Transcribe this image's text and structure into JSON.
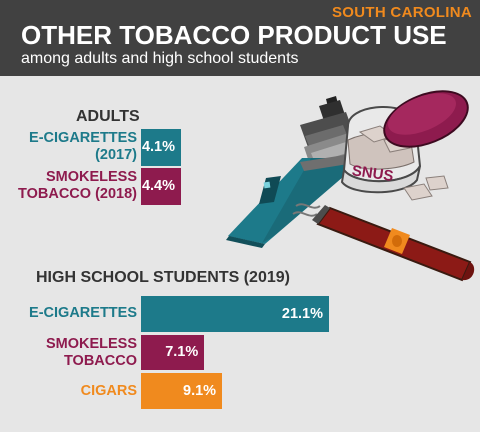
{
  "header": {
    "state": "SOUTH CAROLINA",
    "title": "OTHER TOBACCO PRODUCT USE",
    "subtitle": "among adults and high school students"
  },
  "colors": {
    "teal": "#1d7a8a",
    "maroon": "#8e1b4e",
    "orange": "#f08a1e",
    "header_bg": "#414141",
    "background": "#e6e6e6"
  },
  "illustration": {
    "snus_label": "SNUS",
    "items": [
      "e-cigarette-icon",
      "snus-tin-icon",
      "cigar-icon"
    ]
  },
  "chart_data": [
    {
      "type": "bar",
      "orientation": "horizontal",
      "title": "ADULTS",
      "unit": "%",
      "categories": [
        "E-CIGARETTES\n(2017)",
        "SMOKELESS\nTOBACCO (2018)"
      ],
      "values": [
        4.1,
        4.4
      ],
      "labels": [
        "4.1%",
        "4.4%"
      ],
      "colors": [
        "#1d7a8a",
        "#8e1b4e"
      ]
    },
    {
      "type": "bar",
      "orientation": "horizontal",
      "title": "HIGH SCHOOL STUDENTS (2019)",
      "unit": "%",
      "categories": [
        "E-CIGARETTES",
        "SMOKELESS\nTOBACCO",
        "CIGARS"
      ],
      "values": [
        21.1,
        7.1,
        9.1
      ],
      "labels": [
        "21.1%",
        "7.1%",
        "9.1%"
      ],
      "colors": [
        "#1d7a8a",
        "#8e1b4e",
        "#f08a1e"
      ]
    }
  ]
}
